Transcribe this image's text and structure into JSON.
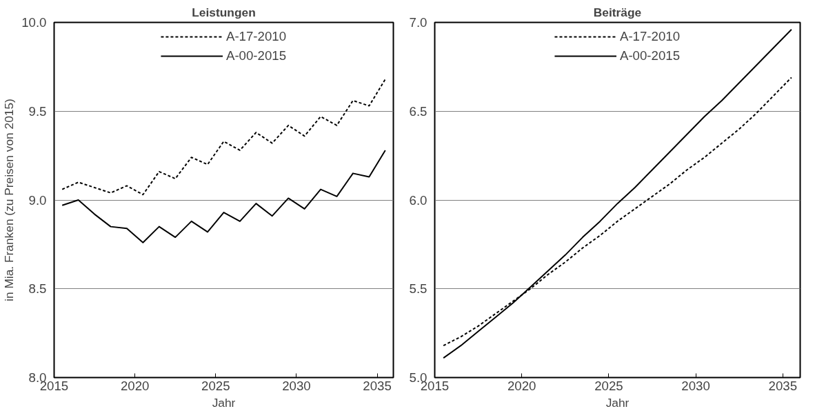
{
  "chart_data": [
    {
      "type": "line",
      "title": "Leistungen",
      "xlabel": "Jahr",
      "ylabel": "in Mia. Franken (zu Preisen von 2015)",
      "x": [
        2015.5,
        2016.5,
        2017.5,
        2018.5,
        2019.5,
        2020.5,
        2021.5,
        2022.5,
        2023.5,
        2024.5,
        2025.5,
        2026.5,
        2027.5,
        2028.5,
        2029.5,
        2030.5,
        2031.5,
        2032.5,
        2033.5,
        2034.5,
        2035.5
      ],
      "series": [
        {
          "name": "A-17-2010",
          "color": "#000000",
          "line_style": "dashed",
          "values": [
            9.06,
            9.1,
            9.07,
            9.04,
            9.08,
            9.03,
            9.16,
            9.12,
            9.24,
            9.2,
            9.33,
            9.28,
            9.38,
            9.32,
            9.42,
            9.36,
            9.47,
            9.42,
            9.56,
            9.53,
            9.68
          ]
        },
        {
          "name": "A-00-2015",
          "color": "#000000",
          "line_style": "solid",
          "values": [
            8.97,
            9.0,
            8.92,
            8.85,
            8.84,
            8.76,
            8.85,
            8.79,
            8.88,
            8.82,
            8.93,
            8.88,
            8.98,
            8.91,
            9.01,
            8.95,
            9.06,
            9.02,
            9.15,
            9.13,
            9.28
          ]
        }
      ],
      "xlim": [
        2015,
        2036
      ],
      "xticks": [
        2015,
        2020,
        2025,
        2030,
        2035
      ],
      "ylim": [
        8,
        10
      ],
      "yticks": [
        {
          "value": 8,
          "label": "8.0"
        },
        {
          "value": 8.5,
          "label": "8.5"
        },
        {
          "value": 9,
          "label": "9.0"
        },
        {
          "value": 9.5,
          "label": "9.5"
        },
        {
          "value": 10,
          "label": "10.0"
        }
      ],
      "grid": "y",
      "legend": "top"
    },
    {
      "type": "line",
      "title": "Beiträge",
      "xlabel": "Jahr",
      "x": [
        2015.5,
        2016.5,
        2017.5,
        2018.5,
        2019.5,
        2020.5,
        2021.5,
        2022.5,
        2023.5,
        2024.5,
        2025.5,
        2026.5,
        2027.5,
        2028.5,
        2029.5,
        2030.5,
        2031.5,
        2032.5,
        2033.5,
        2034.5,
        2035.5
      ],
      "series": [
        {
          "name": "A-17-2010",
          "color": "#000000",
          "line_style": "dashed",
          "values": [
            5.18,
            5.23,
            5.29,
            5.36,
            5.43,
            5.5,
            5.58,
            5.65,
            5.73,
            5.8,
            5.88,
            5.95,
            6.02,
            6.09,
            6.17,
            6.24,
            6.32,
            6.4,
            6.49,
            6.59,
            6.69
          ]
        },
        {
          "name": "A-00-2015",
          "color": "#000000",
          "line_style": "solid",
          "values": [
            5.11,
            5.18,
            5.26,
            5.34,
            5.42,
            5.51,
            5.6,
            5.69,
            5.79,
            5.88,
            5.98,
            6.07,
            6.17,
            6.27,
            6.37,
            6.47,
            6.56,
            6.66,
            6.76,
            6.86,
            6.96
          ]
        }
      ],
      "xlim": [
        2015,
        2036
      ],
      "xticks": [
        2015,
        2020,
        2025,
        2030,
        2035
      ],
      "ylim": [
        5,
        7
      ],
      "yticks": [
        {
          "value": 5,
          "label": "5.0"
        },
        {
          "value": 5.5,
          "label": "5.5"
        },
        {
          "value": 6,
          "label": "6.0"
        },
        {
          "value": 6.5,
          "label": "6.5"
        },
        {
          "value": 7,
          "label": "7.0"
        }
      ],
      "grid": "y",
      "legend": "top"
    }
  ]
}
